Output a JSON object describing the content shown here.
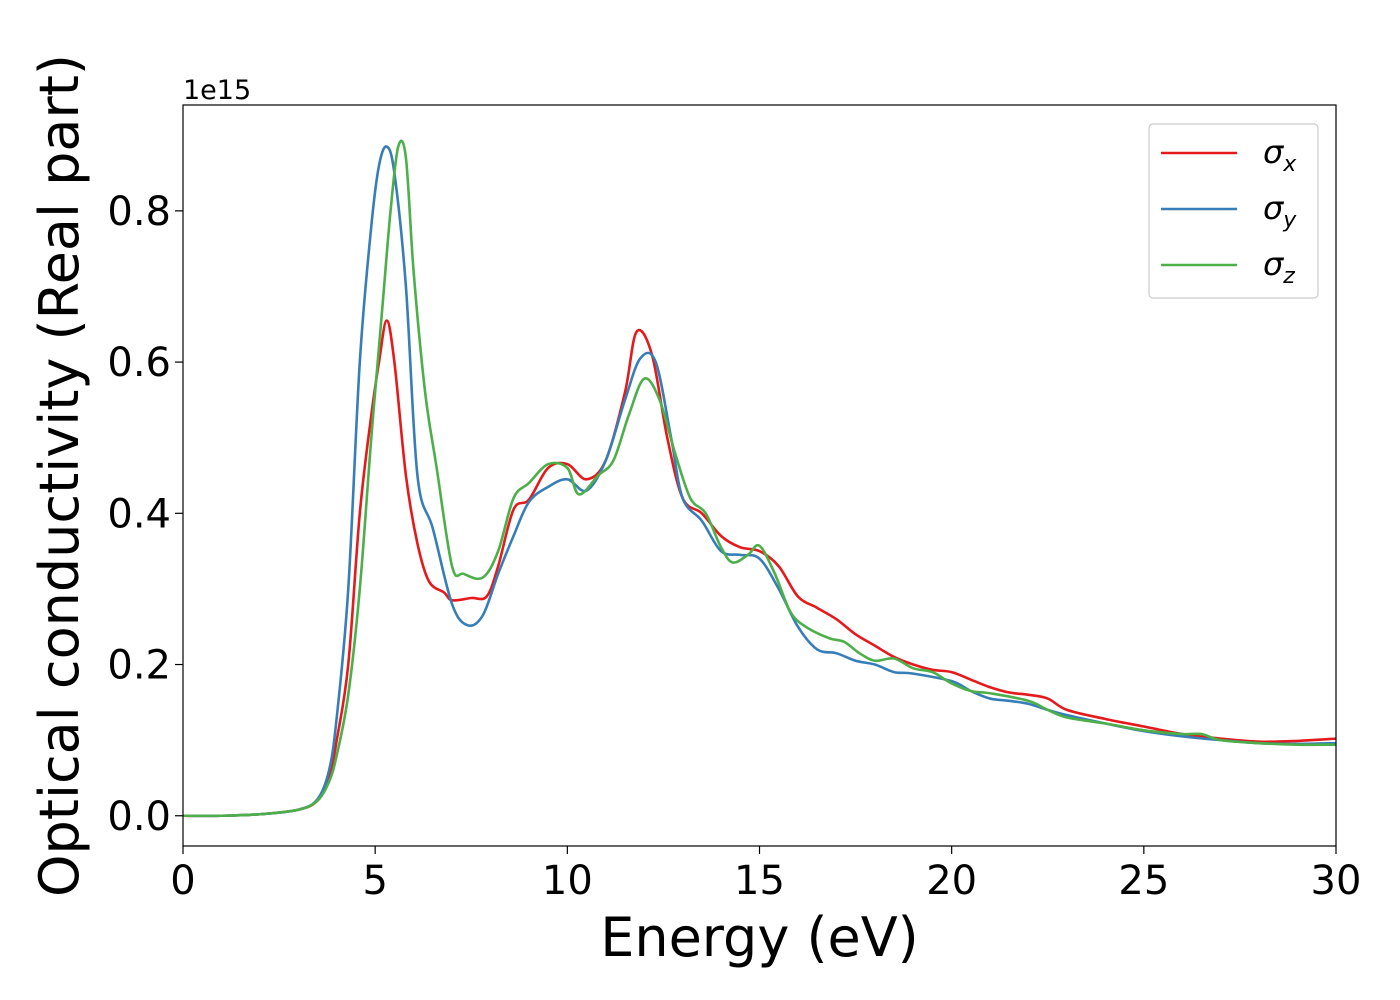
{
  "chart_data": {
    "type": "line",
    "title": "",
    "xlabel": "Energy (eV)",
    "ylabel": "Optical conductivity (Real part)",
    "y_offset_label": "1e15",
    "xlim": [
      0,
      30
    ],
    "ylim": [
      -0.04,
      0.94
    ],
    "x_ticks": [
      0,
      5,
      10,
      15,
      20,
      25,
      30
    ],
    "x_tick_labels": [
      "0",
      "5",
      "10",
      "15",
      "20",
      "25",
      "30"
    ],
    "y_ticks": [
      0.0,
      0.2,
      0.4,
      0.6,
      0.8
    ],
    "y_tick_labels": [
      "0.0",
      "0.2",
      "0.4",
      "0.6",
      "0.8"
    ],
    "grid": false,
    "legend_position": "top-right",
    "series": [
      {
        "name": "σx",
        "symbol": "σ",
        "subscript": "x",
        "color": "#e41a1c",
        "points": [
          [
            0,
            0
          ],
          [
            1,
            0.0
          ],
          [
            2,
            0.002
          ],
          [
            3,
            0.008
          ],
          [
            3.5,
            0.02
          ],
          [
            3.8,
            0.05
          ],
          [
            4.0,
            0.1
          ],
          [
            4.3,
            0.2
          ],
          [
            4.6,
            0.4
          ],
          [
            4.9,
            0.53
          ],
          [
            5.1,
            0.6
          ],
          [
            5.3,
            0.655
          ],
          [
            5.5,
            0.6
          ],
          [
            5.8,
            0.45
          ],
          [
            6.1,
            0.36
          ],
          [
            6.4,
            0.31
          ],
          [
            6.8,
            0.295
          ],
          [
            7.0,
            0.285
          ],
          [
            7.5,
            0.288
          ],
          [
            7.9,
            0.29
          ],
          [
            8.2,
            0.33
          ],
          [
            8.6,
            0.405
          ],
          [
            9.0,
            0.418
          ],
          [
            9.5,
            0.46
          ],
          [
            10.0,
            0.465
          ],
          [
            10.5,
            0.445
          ],
          [
            11.0,
            0.47
          ],
          [
            11.5,
            0.56
          ],
          [
            11.8,
            0.64
          ],
          [
            12.2,
            0.61
          ],
          [
            12.6,
            0.5
          ],
          [
            13.0,
            0.42
          ],
          [
            13.5,
            0.4
          ],
          [
            14.0,
            0.37
          ],
          [
            14.5,
            0.355
          ],
          [
            15.0,
            0.35
          ],
          [
            15.5,
            0.33
          ],
          [
            16.0,
            0.29
          ],
          [
            16.5,
            0.275
          ],
          [
            17.0,
            0.26
          ],
          [
            17.5,
            0.24
          ],
          [
            18.0,
            0.225
          ],
          [
            18.5,
            0.21
          ],
          [
            19.0,
            0.2
          ],
          [
            19.5,
            0.193
          ],
          [
            20.0,
            0.19
          ],
          [
            20.5,
            0.18
          ],
          [
            21.0,
            0.17
          ],
          [
            21.5,
            0.163
          ],
          [
            22.0,
            0.16
          ],
          [
            22.5,
            0.155
          ],
          [
            23.0,
            0.14
          ],
          [
            24.0,
            0.128
          ],
          [
            25.0,
            0.118
          ],
          [
            26.0,
            0.108
          ],
          [
            27.0,
            0.102
          ],
          [
            28.0,
            0.098
          ],
          [
            29.0,
            0.099
          ],
          [
            30.0,
            0.102
          ]
        ]
      },
      {
        "name": "σy",
        "symbol": "σ",
        "subscript": "y",
        "color": "#377eb8",
        "points": [
          [
            0,
            0
          ],
          [
            1,
            0.0
          ],
          [
            2,
            0.002
          ],
          [
            3,
            0.008
          ],
          [
            3.5,
            0.022
          ],
          [
            3.8,
            0.06
          ],
          [
            4.0,
            0.13
          ],
          [
            4.3,
            0.3
          ],
          [
            4.6,
            0.6
          ],
          [
            4.9,
            0.78
          ],
          [
            5.1,
            0.86
          ],
          [
            5.3,
            0.885
          ],
          [
            5.5,
            0.85
          ],
          [
            5.8,
            0.7
          ],
          [
            6.1,
            0.45
          ],
          [
            6.5,
            0.38
          ],
          [
            7.0,
            0.28
          ],
          [
            7.4,
            0.252
          ],
          [
            7.8,
            0.265
          ],
          [
            8.2,
            0.32
          ],
          [
            8.6,
            0.37
          ],
          [
            9.0,
            0.415
          ],
          [
            9.5,
            0.435
          ],
          [
            10.0,
            0.445
          ],
          [
            10.5,
            0.43
          ],
          [
            11.0,
            0.47
          ],
          [
            11.5,
            0.55
          ],
          [
            11.9,
            0.605
          ],
          [
            12.3,
            0.6
          ],
          [
            12.7,
            0.5
          ],
          [
            13.0,
            0.42
          ],
          [
            13.5,
            0.39
          ],
          [
            14.0,
            0.35
          ],
          [
            14.5,
            0.345
          ],
          [
            15.0,
            0.34
          ],
          [
            15.5,
            0.3
          ],
          [
            16.0,
            0.25
          ],
          [
            16.5,
            0.22
          ],
          [
            17.0,
            0.215
          ],
          [
            17.5,
            0.205
          ],
          [
            18.0,
            0.2
          ],
          [
            18.5,
            0.19
          ],
          [
            19.0,
            0.188
          ],
          [
            20.0,
            0.178
          ],
          [
            20.5,
            0.165
          ],
          [
            21.0,
            0.155
          ],
          [
            21.5,
            0.152
          ],
          [
            22.0,
            0.148
          ],
          [
            22.5,
            0.14
          ],
          [
            23.0,
            0.133
          ],
          [
            24.0,
            0.122
          ],
          [
            25.0,
            0.112
          ],
          [
            26.0,
            0.105
          ],
          [
            27.0,
            0.1
          ],
          [
            28.0,
            0.096
          ],
          [
            29.0,
            0.095
          ],
          [
            30.0,
            0.096
          ]
        ]
      },
      {
        "name": "σz",
        "symbol": "σ",
        "subscript": "z",
        "color": "#4daf4a",
        "points": [
          [
            0,
            0
          ],
          [
            1,
            0.0
          ],
          [
            2,
            0.002
          ],
          [
            3,
            0.008
          ],
          [
            3.5,
            0.02
          ],
          [
            3.8,
            0.045
          ],
          [
            4.0,
            0.08
          ],
          [
            4.3,
            0.16
          ],
          [
            4.6,
            0.3
          ],
          [
            4.9,
            0.5
          ],
          [
            5.2,
            0.68
          ],
          [
            5.4,
            0.8
          ],
          [
            5.6,
            0.885
          ],
          [
            5.8,
            0.87
          ],
          [
            6.0,
            0.72
          ],
          [
            6.3,
            0.56
          ],
          [
            6.6,
            0.46
          ],
          [
            7.0,
            0.33
          ],
          [
            7.3,
            0.32
          ],
          [
            7.8,
            0.315
          ],
          [
            8.2,
            0.35
          ],
          [
            8.6,
            0.42
          ],
          [
            9.0,
            0.44
          ],
          [
            9.5,
            0.465
          ],
          [
            10.0,
            0.46
          ],
          [
            10.3,
            0.425
          ],
          [
            10.8,
            0.45
          ],
          [
            11.2,
            0.47
          ],
          [
            11.6,
            0.53
          ],
          [
            12.0,
            0.578
          ],
          [
            12.4,
            0.55
          ],
          [
            12.8,
            0.48
          ],
          [
            13.2,
            0.42
          ],
          [
            13.6,
            0.4
          ],
          [
            14.0,
            0.355
          ],
          [
            14.3,
            0.335
          ],
          [
            14.7,
            0.345
          ],
          [
            15.0,
            0.357
          ],
          [
            15.4,
            0.32
          ],
          [
            15.8,
            0.27
          ],
          [
            16.2,
            0.25
          ],
          [
            16.8,
            0.235
          ],
          [
            17.2,
            0.23
          ],
          [
            17.6,
            0.215
          ],
          [
            18.0,
            0.205
          ],
          [
            18.5,
            0.208
          ],
          [
            19.0,
            0.195
          ],
          [
            19.5,
            0.19
          ],
          [
            20.0,
            0.175
          ],
          [
            20.5,
            0.165
          ],
          [
            21.0,
            0.162
          ],
          [
            22.0,
            0.152
          ],
          [
            22.5,
            0.14
          ],
          [
            23.0,
            0.13
          ],
          [
            24.0,
            0.122
          ],
          [
            25.0,
            0.113
          ],
          [
            26.0,
            0.108
          ],
          [
            26.5,
            0.108
          ],
          [
            27.0,
            0.1
          ],
          [
            28.0,
            0.096
          ],
          [
            29.0,
            0.094
          ],
          [
            30.0,
            0.094
          ]
        ]
      }
    ]
  }
}
